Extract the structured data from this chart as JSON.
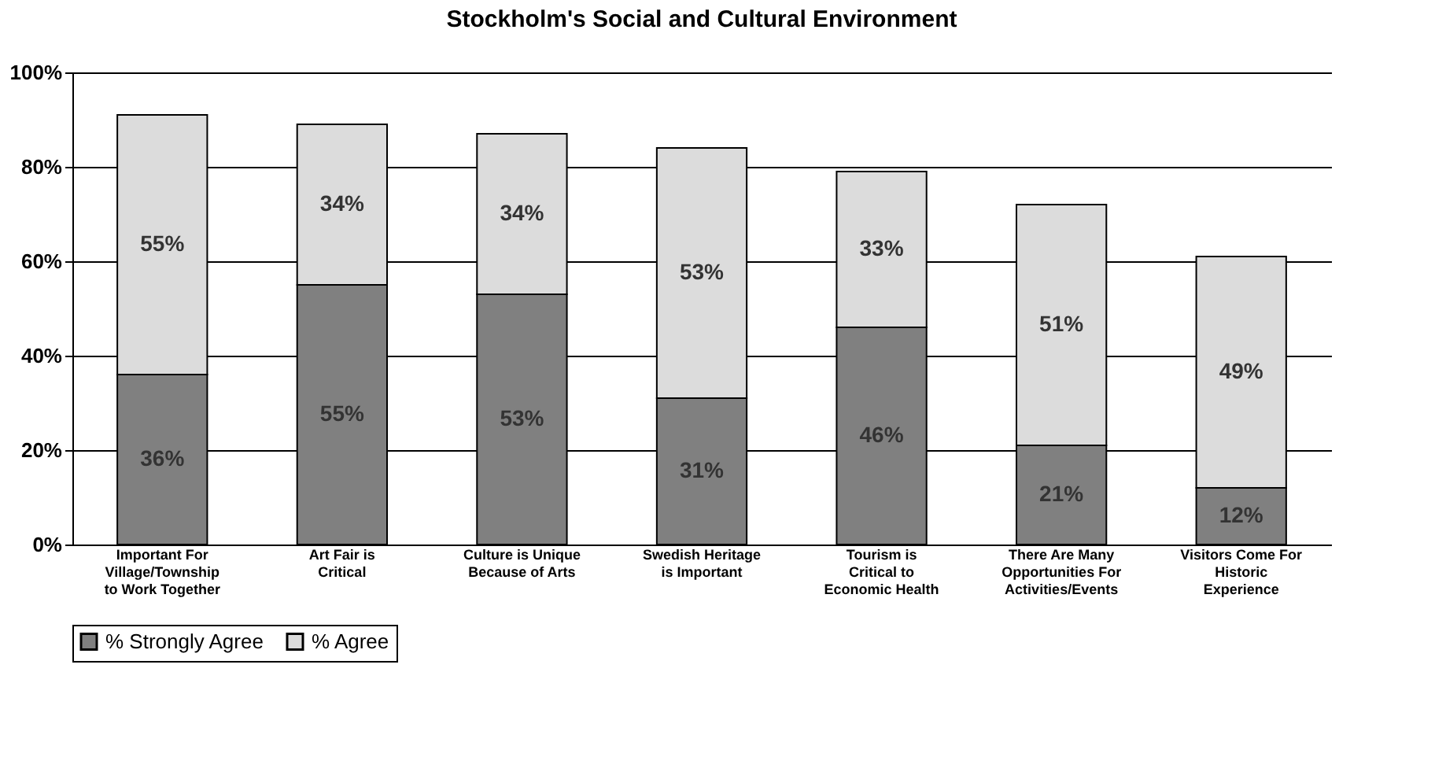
{
  "chart_data": {
    "type": "bar",
    "title": "Stockholm's Social and Cultural Environment",
    "categories": [
      "Important For Village/Township to Work Together",
      "Art Fair is Critical",
      "Culture is Unique Because of Arts",
      "Swedish Heritage is Important",
      "Tourism is Critical to Economic Health",
      "There Are Many Opportunities For Activities/Events",
      "Visitors Come For Historic Experience"
    ],
    "series": [
      {
        "name": "% Strongly Agree",
        "color": "#808080",
        "values": [
          36,
          55,
          53,
          31,
          46,
          21,
          12
        ],
        "value_labels": [
          "36%",
          "55%",
          "53%",
          "31%",
          "46%",
          "21%",
          "12%"
        ]
      },
      {
        "name": "% Agree",
        "color": "#dcdcdc",
        "values": [
          55,
          34,
          34,
          53,
          33,
          51,
          49
        ],
        "value_labels": [
          "55%",
          "34%",
          "34%",
          "53%",
          "33%",
          "51%",
          "49%"
        ]
      }
    ],
    "stacked": true,
    "ylim": [
      0,
      100
    ],
    "yticks": [
      {
        "value": 0,
        "label": "0%"
      },
      {
        "value": 20,
        "label": "20%"
      },
      {
        "value": 40,
        "label": "40%"
      },
      {
        "value": 60,
        "label": "60%"
      },
      {
        "value": 80,
        "label": "80%"
      },
      {
        "value": 100,
        "label": "100%"
      }
    ],
    "grid": "y",
    "legend": "bottom"
  }
}
